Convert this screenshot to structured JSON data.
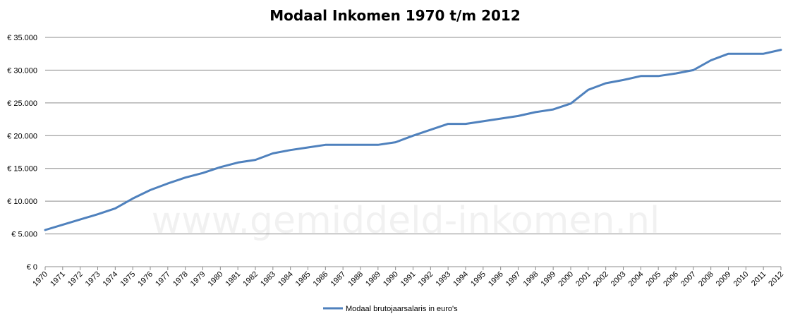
{
  "chart_data": {
    "type": "line",
    "title": "Modaal Inkomen 1970 t/m 2012",
    "watermark": "www.gemiddeld-inkomen.nl",
    "x": [
      "1970",
      "1971",
      "1972",
      "1973",
      "1974",
      "1975",
      "1976",
      "1977",
      "1978",
      "1979",
      "1980",
      "1981",
      "1982",
      "1983",
      "1984",
      "1985",
      "1986",
      "1987",
      "1988",
      "1989",
      "1990",
      "1991",
      "1992",
      "1993",
      "1994",
      "1995",
      "1996",
      "1997",
      "1998",
      "1999",
      "2000",
      "2001",
      "2002",
      "2003",
      "2004",
      "2005",
      "2006",
      "2007",
      "2008",
      "2009",
      "2010",
      "2011",
      "2012"
    ],
    "series": [
      {
        "name": "Modaal brutojaarsalaris in euro's",
        "color": "#4f81bd",
        "values": [
          5600,
          6400,
          7200,
          8000,
          8900,
          10400,
          11700,
          12700,
          13600,
          14300,
          15200,
          15900,
          16300,
          17300,
          17800,
          18200,
          18600,
          18600,
          18600,
          18600,
          19000,
          20000,
          20900,
          21800,
          21800,
          22200,
          22600,
          23000,
          23600,
          24000,
          24900,
          27000,
          28000,
          28500,
          29100,
          29100,
          29500,
          30000,
          31500,
          32500,
          32500,
          32500,
          33100
        ]
      }
    ],
    "y_ticks": [
      "€ 0",
      "€ 5.000",
      "€ 10.000",
      "€ 15.000",
      "€ 20.000",
      "€ 25.000",
      "€ 30.000",
      "€ 35.000"
    ],
    "ylim": [
      0,
      35000
    ],
    "y_step": 5000,
    "grid": true,
    "legend_position": "bottom"
  }
}
